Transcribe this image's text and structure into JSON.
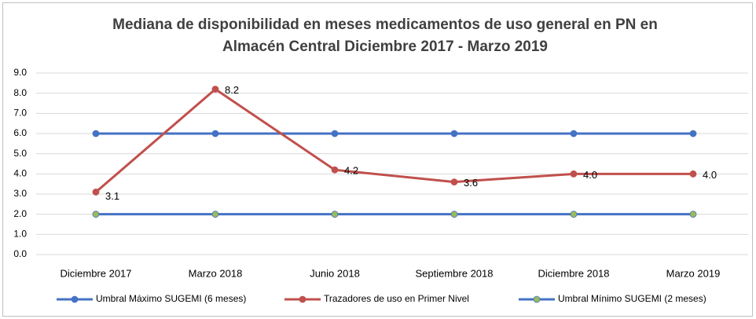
{
  "chart_data": {
    "type": "line",
    "title": [
      "Mediana de disponibilidad en meses medicamentos de uso general en PN en",
      "Almacén Central     Diciembre 2017 - Marzo 2019"
    ],
    "categories": [
      "Diciembre 2017",
      "Marzo 2018",
      "Junio 2018",
      "Septiembre 2018",
      "Diciembre 2018",
      "Marzo 2019"
    ],
    "series": [
      {
        "name": "Umbral Máximo SUGEMI (6 meses)",
        "color": "#4472c4",
        "marker_color": "#4472c4",
        "values": [
          6,
          6,
          6,
          6,
          6,
          6
        ]
      },
      {
        "name": "Trazadores de uso en Primer Nivel",
        "color": "#c0504d",
        "marker_color": "#c0504d",
        "values": [
          3.1,
          8.2,
          4.2,
          3.6,
          4.0,
          4.0
        ],
        "value_labels": [
          "3.1",
          "8.2",
          "4.2",
          "3.6",
          "4.0",
          "4.0"
        ]
      },
      {
        "name": "Umbral Mínimo SUGEMI (2 meses)",
        "color": "#4472c4",
        "marker_color": "#9bbb59",
        "values": [
          2,
          2,
          2,
          2,
          2,
          2
        ]
      }
    ],
    "ylim": [
      0,
      9
    ],
    "yticks": [
      {
        "value": 0,
        "label": "0.0"
      },
      {
        "value": 1,
        "label": "1.0"
      },
      {
        "value": 2,
        "label": "2.0"
      },
      {
        "value": 3,
        "label": "3.0"
      },
      {
        "value": 4,
        "label": "4.0"
      },
      {
        "value": 5,
        "label": "5.0"
      },
      {
        "value": 6,
        "label": "6.0"
      },
      {
        "value": 7,
        "label": "7.0"
      },
      {
        "value": 8,
        "label": "8.0"
      },
      {
        "value": 9,
        "label": "9.0"
      }
    ],
    "grid": true,
    "legend": "bottom"
  }
}
